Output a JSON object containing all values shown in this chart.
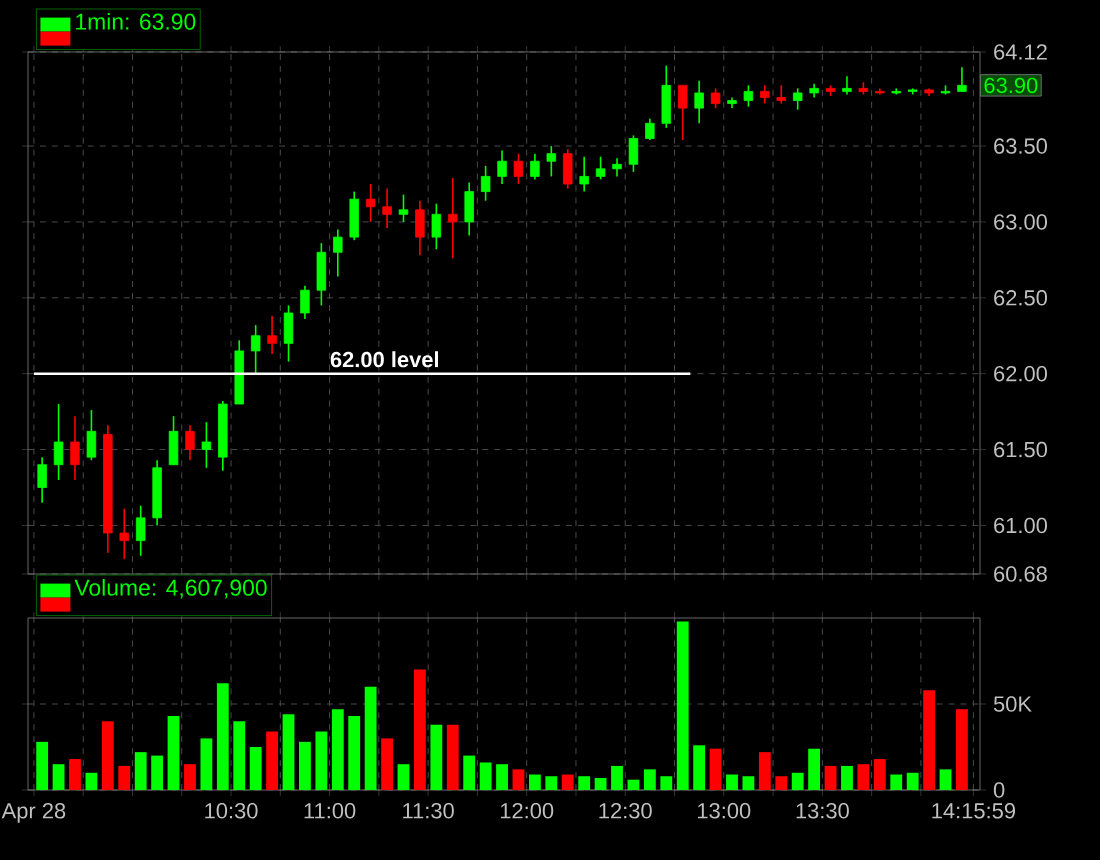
{
  "chart_data": [
    {
      "type": "candlestick",
      "legend": "top left",
      "grid": true,
      "tick_labels": "y",
      "xlim": [
        9.47,
        14.3
      ],
      "ylim": [
        60.68,
        64.12
      ],
      "xticks": [
        {
          "value": 9.5,
          "label": null
        },
        {
          "value": 9.75,
          "label": null
        },
        {
          "value": 10,
          "label": null
        },
        {
          "value": 10.25,
          "label": null
        },
        {
          "value": 10.5,
          "label": null
        },
        {
          "value": 10.75,
          "label": null
        },
        {
          "value": 11,
          "label": null
        },
        {
          "value": 11.25,
          "label": null
        },
        {
          "value": 11.5,
          "label": null
        },
        {
          "value": 11.75,
          "label": null
        },
        {
          "value": 12,
          "label": null
        },
        {
          "value": 12.25,
          "label": null
        },
        {
          "value": 12.5,
          "label": null
        },
        {
          "value": 12.75,
          "label": null
        },
        {
          "value": 13,
          "label": null
        },
        {
          "value": 13.25,
          "label": null
        },
        {
          "value": 13.5,
          "label": null
        },
        {
          "value": 13.75,
          "label": null
        },
        {
          "value": 14,
          "label": null
        },
        {
          "value": 14.2664,
          "label": null
        }
      ],
      "yticks": [
        60.68,
        {
          "value": 61,
          "label": "61.00"
        },
        {
          "value": 61.5,
          "label": "61.50"
        },
        {
          "value": 62,
          "label": "62.00"
        },
        {
          "value": 62.5,
          "label": "62.50"
        },
        {
          "value": 63,
          "label": "63.00"
        },
        {
          "value": 63.5,
          "label": "63.50"
        },
        64.12
      ],
      "annotations": [
        {
          "text": "62.00 level",
          "x": 11.28,
          "y": 62.0
        },
        "63.90"
      ],
      "series": [
        {
          "name": "1min: 63.90",
          "type": "candlestick",
          "x": [
            9.5417,
            9.625,
            9.7083,
            9.7917,
            9.875,
            9.9583,
            10.0417,
            10.125,
            10.2083,
            10.2917,
            10.375,
            10.4583,
            10.5417,
            10.625,
            10.7083,
            10.7917,
            10.875,
            10.9583,
            11.0417,
            11.125,
            11.2083,
            11.2917,
            11.375,
            11.4583,
            11.5417,
            11.625,
            11.7083,
            11.7917,
            11.875,
            11.9583,
            12.0417,
            12.125,
            12.2083,
            12.2917,
            12.375,
            12.4583,
            12.5417,
            12.625,
            12.7083,
            12.7917,
            12.875,
            12.9583,
            13.0417,
            13.125,
            13.2083,
            13.2917,
            13.375,
            13.4583,
            13.5417,
            13.625,
            13.7083,
            13.7917,
            13.875,
            13.9583,
            14.0417,
            14.125,
            14.2083
          ],
          "ohlc": [
            [
              61.25,
              61.45,
              61.15,
              61.4
            ],
            [
              61.4,
              61.8,
              61.3,
              61.55
            ],
            [
              61.55,
              61.72,
              61.3,
              61.4
            ],
            [
              61.45,
              61.76,
              61.43,
              61.62
            ],
            [
              61.6,
              61.66,
              60.82,
              60.95
            ],
            [
              60.95,
              61.11,
              60.78,
              60.9
            ],
            [
              60.9,
              61.13,
              60.8,
              61.05
            ],
            [
              61.05,
              61.43,
              61.0,
              61.38
            ],
            [
              61.4,
              61.72,
              61.4,
              61.62
            ],
            [
              61.62,
              61.66,
              61.43,
              61.5
            ],
            [
              61.5,
              61.68,
              61.38,
              61.55
            ],
            [
              61.45,
              61.82,
              61.36,
              61.8
            ],
            [
              61.8,
              62.22,
              61.8,
              62.15
            ],
            [
              62.15,
              62.32,
              62.0,
              62.25
            ],
            [
              62.25,
              62.38,
              62.13,
              62.2
            ],
            [
              62.2,
              62.45,
              62.08,
              62.4
            ],
            [
              62.4,
              62.58,
              62.36,
              62.55
            ],
            [
              62.55,
              62.86,
              62.45,
              62.8
            ],
            [
              62.8,
              62.95,
              62.64,
              62.9
            ],
            [
              62.9,
              63.2,
              62.88,
              63.15
            ],
            [
              63.15,
              63.25,
              63.0,
              63.1
            ],
            [
              63.1,
              63.22,
              62.96,
              63.05
            ],
            [
              63.05,
              63.18,
              63.0,
              63.08
            ],
            [
              63.08,
              63.14,
              62.78,
              62.9
            ],
            [
              62.9,
              63.12,
              62.82,
              63.05
            ],
            [
              63.05,
              63.29,
              62.76,
              63.0
            ],
            [
              63.0,
              63.26,
              62.91,
              63.2
            ],
            [
              63.2,
              63.37,
              63.14,
              63.3
            ],
            [
              63.3,
              63.47,
              63.25,
              63.4
            ],
            [
              63.4,
              63.45,
              63.25,
              63.3
            ],
            [
              63.3,
              63.45,
              63.28,
              63.4
            ],
            [
              63.4,
              63.5,
              63.3,
              63.45
            ],
            [
              63.45,
              63.48,
              63.22,
              63.25
            ],
            [
              63.25,
              63.43,
              63.2,
              63.3
            ],
            [
              63.3,
              63.43,
              63.28,
              63.35
            ],
            [
              63.35,
              63.42,
              63.3,
              63.38
            ],
            [
              63.38,
              63.57,
              63.33,
              63.55
            ],
            [
              63.55,
              63.68,
              63.54,
              63.65
            ],
            [
              63.65,
              64.03,
              63.62,
              63.9
            ],
            [
              63.9,
              63.9,
              63.54,
              63.75
            ],
            [
              63.75,
              63.93,
              63.65,
              63.85
            ],
            [
              63.85,
              63.88,
              63.75,
              63.78
            ],
            [
              63.78,
              63.82,
              63.75,
              63.8
            ],
            [
              63.8,
              63.9,
              63.76,
              63.86
            ],
            [
              63.86,
              63.9,
              63.78,
              63.82
            ],
            [
              63.82,
              63.9,
              63.78,
              63.8
            ],
            [
              63.8,
              63.88,
              63.74,
              63.85
            ],
            [
              63.85,
              63.91,
              63.82,
              63.88
            ],
            [
              63.88,
              63.9,
              63.83,
              63.86
            ],
            [
              63.86,
              63.96,
              63.84,
              63.88
            ],
            [
              63.88,
              63.92,
              63.84,
              63.86
            ],
            [
              63.86,
              63.88,
              63.84,
              63.85
            ],
            [
              63.85,
              63.88,
              63.84,
              63.86
            ],
            [
              63.86,
              63.88,
              63.84,
              63.87
            ],
            [
              63.87,
              63.88,
              63.83,
              63.85
            ],
            [
              63.85,
              63.9,
              63.84,
              63.86
            ],
            [
              63.86,
              64.02,
              63.86,
              63.9
            ]
          ],
          "colors": [
            "#00ff00",
            "#00ff00",
            "#ff0000",
            "#00ff00",
            "#ff0000",
            "#ff0000",
            "#00ff00",
            "#00ff00",
            "#00ff00",
            "#ff0000",
            "#00ff00",
            "#00ff00",
            "#00ff00",
            "#00ff00",
            "#ff0000",
            "#00ff00",
            "#00ff00",
            "#00ff00",
            "#00ff00",
            "#00ff00",
            "#ff0000",
            "#ff0000",
            "#00ff00",
            "#ff0000",
            "#00ff00",
            "#ff0000",
            "#00ff00",
            "#00ff00",
            "#00ff00",
            "#ff0000",
            "#00ff00",
            "#00ff00",
            "#ff0000",
            "#00ff00",
            "#00ff00",
            "#00ff00",
            "#00ff00",
            "#00ff00",
            "#00ff00",
            "#ff0000",
            "#00ff00",
            "#ff0000",
            "#00ff00",
            "#00ff00",
            "#ff0000",
            "#ff0000",
            "#00ff00",
            "#00ff00",
            "#ff0000",
            "#00ff00",
            "#ff0000",
            "#ff0000",
            "#00ff00",
            "#00ff00",
            "#ff0000",
            "#00ff00",
            "#00ff00"
          ]
        },
        {
          "type": "line",
          "color": "#ffffff",
          "x": [
            9.5,
            12.83
          ],
          "values": [
            62.0,
            62.0
          ]
        }
      ]
    },
    {
      "type": "bar",
      "legend": "top left",
      "grid": true,
      "xlim": [
        9.47,
        14.3
      ],
      "ylim": [
        0,
        100000
      ],
      "yticks": [
        0,
        {
          "value": 50000,
          "label": "50K"
        }
      ],
      "xticks": [
        {
          "value": 9.5,
          "label": "Apr 28"
        },
        {
          "value": 9.75,
          "label": null
        },
        {
          "value": 10,
          "label": null
        },
        {
          "value": 10.25,
          "label": null
        },
        {
          "value": 10.5,
          "label": "10:30"
        },
        {
          "value": 10.75,
          "label": null
        },
        {
          "value": 11,
          "label": "11:00"
        },
        {
          "value": 11.25,
          "label": null
        },
        {
          "value": 11.5,
          "label": "11:30"
        },
        {
          "value": 11.75,
          "label": null
        },
        {
          "value": 12,
          "label": "12:00"
        },
        {
          "value": 12.25,
          "label": null
        },
        {
          "value": 12.5,
          "label": "12:30"
        },
        {
          "value": 12.75,
          "label": null
        },
        {
          "value": 13,
          "label": "13:00"
        },
        {
          "value": 13.25,
          "label": null
        },
        {
          "value": 13.5,
          "label": "13:30"
        },
        {
          "value": 13.75,
          "label": null
        },
        {
          "value": 14,
          "label": null
        },
        {
          "value": 14.2664,
          "label": "14:15:59"
        }
      ],
      "series": [
        {
          "name": "Volume: 4,607,900",
          "x": [
            9.5417,
            9.625,
            9.7083,
            9.7917,
            9.875,
            9.9583,
            10.0417,
            10.125,
            10.2083,
            10.2917,
            10.375,
            10.4583,
            10.5417,
            10.625,
            10.7083,
            10.7917,
            10.875,
            10.9583,
            11.0417,
            11.125,
            11.2083,
            11.2917,
            11.375,
            11.4583,
            11.5417,
            11.625,
            11.7083,
            11.7917,
            11.875,
            11.9583,
            12.0417,
            12.125,
            12.2083,
            12.2917,
            12.375,
            12.4583,
            12.5417,
            12.625,
            12.7083,
            12.7917,
            12.875,
            12.9583,
            13.0417,
            13.125,
            13.2083,
            13.2917,
            13.375,
            13.4583,
            13.5417,
            13.625,
            13.7083,
            13.7917,
            13.875,
            13.9583,
            14.0417,
            14.125,
            14.2083
          ],
          "values": [
            28000,
            15000,
            18000,
            10000,
            40000,
            14000,
            22000,
            20000,
            43000,
            15000,
            30000,
            62000,
            40000,
            25000,
            34000,
            44000,
            28000,
            34000,
            47000,
            43000,
            60000,
            30000,
            15000,
            70000,
            38000,
            38000,
            20000,
            16000,
            15000,
            12000,
            9000,
            8000,
            9000,
            8000,
            7000,
            14000,
            6000,
            12000,
            8000,
            98000,
            26000,
            24000,
            9000,
            8000,
            22000,
            8000,
            10000,
            24000,
            14000,
            14000,
            15000,
            18000,
            9000,
            10000,
            58000,
            12000,
            47000
          ],
          "colors": [
            "#00ff00",
            "#00ff00",
            "#ff0000",
            "#00ff00",
            "#ff0000",
            "#ff0000",
            "#00ff00",
            "#00ff00",
            "#00ff00",
            "#ff0000",
            "#00ff00",
            "#00ff00",
            "#00ff00",
            "#00ff00",
            "#ff0000",
            "#00ff00",
            "#00ff00",
            "#00ff00",
            "#00ff00",
            "#00ff00",
            "#00ff00",
            "#ff0000",
            "#00ff00",
            "#ff0000",
            "#00ff00",
            "#ff0000",
            "#00ff00",
            "#00ff00",
            "#00ff00",
            "#ff0000",
            "#00ff00",
            "#00ff00",
            "#ff0000",
            "#00ff00",
            "#00ff00",
            "#00ff00",
            "#00ff00",
            "#00ff00",
            "#00ff00",
            "#00ff00",
            "#00ff00",
            "#ff0000",
            "#00ff00",
            "#00ff00",
            "#ff0000",
            "#ff0000",
            "#00ff00",
            "#00ff00",
            "#ff0000",
            "#00ff00",
            "#ff0000",
            "#ff0000",
            "#00ff00",
            "#00ff00",
            "#ff0000",
            "#00ff00",
            "#ff0000"
          ]
        }
      ]
    }
  ]
}
